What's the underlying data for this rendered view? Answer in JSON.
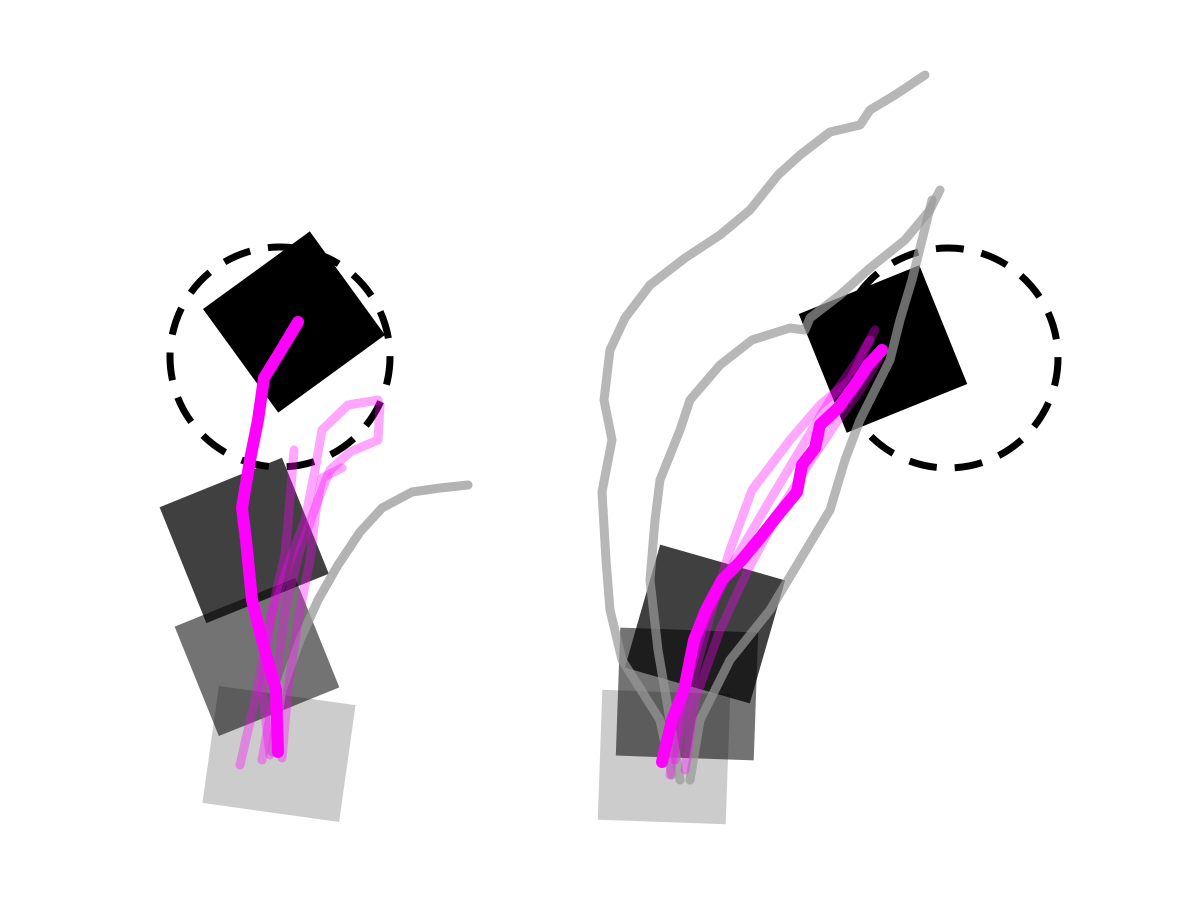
{
  "colors": {
    "background": "#ffffff",
    "block": "#000000",
    "goal": "#000000",
    "trajectory_success": "#ff00ff",
    "trajectory_failure": "#999999"
  },
  "panels": [
    {
      "id": "left",
      "frames": [
        {
          "stage": "start",
          "opacity": 0.2
        },
        {
          "stage": "mid-early",
          "opacity": 0.55
        },
        {
          "stage": "mid-late",
          "opacity": 0.75
        },
        {
          "stage": "final",
          "opacity": 1.0
        }
      ],
      "trajectories": [
        {
          "kind": "success",
          "highlighted": true
        },
        {
          "kind": "success",
          "highlighted": false
        },
        {
          "kind": "success",
          "highlighted": false
        },
        {
          "kind": "success",
          "highlighted": false
        },
        {
          "kind": "success",
          "highlighted": false
        },
        {
          "kind": "failure",
          "highlighted": false
        }
      ]
    },
    {
      "id": "right",
      "frames": [
        {
          "stage": "start",
          "opacity": 0.2
        },
        {
          "stage": "mid-early",
          "opacity": 0.55
        },
        {
          "stage": "mid-late",
          "opacity": 0.75
        },
        {
          "stage": "final",
          "opacity": 1.0
        }
      ],
      "trajectories": [
        {
          "kind": "success",
          "highlighted": true
        },
        {
          "kind": "success",
          "highlighted": false
        },
        {
          "kind": "success",
          "highlighted": false
        },
        {
          "kind": "success",
          "highlighted": false
        },
        {
          "kind": "failure",
          "highlighted": false
        },
        {
          "kind": "failure",
          "highlighted": false
        },
        {
          "kind": "failure",
          "highlighted": false
        }
      ]
    }
  ]
}
